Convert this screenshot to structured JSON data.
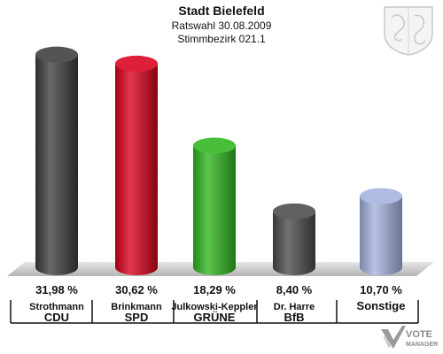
{
  "header": {
    "title": "Stadt Bielefeld",
    "subtitle": "Ratswahl 30.08.2009",
    "district": "Stimmbezirk 021.1"
  },
  "logo": {
    "line1": "VOTE",
    "line2": "MANAGER"
  },
  "chart_data": {
    "type": "bar",
    "ylim": [
      0,
      33
    ],
    "categories": [
      "CDU",
      "SPD",
      "GRÜNE",
      "BfB",
      "Sonstige"
    ],
    "candidates": [
      "Strothmann",
      "Brinkmann",
      "Julkowski-Keppler",
      "Dr. Harre",
      ""
    ],
    "values": [
      31.98,
      30.62,
      18.29,
      8.4,
      10.7
    ],
    "value_labels": [
      "31,98 %",
      "30,62 %",
      "18,29 %",
      "8,40 %",
      "10,70 %"
    ],
    "party_labels": [
      "CDU",
      "SPD",
      "GRÜNE",
      "BfB",
      "Sonstige"
    ],
    "colors": [
      "#3d3d3d",
      "#d8001c",
      "#2fb51e",
      "#4a4a4a",
      "#a4b2de"
    ]
  }
}
